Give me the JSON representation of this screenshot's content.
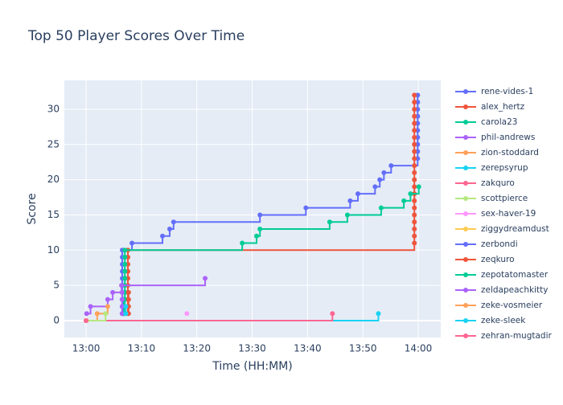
{
  "chart_data": {
    "type": "line",
    "line_shape": "hv",
    "title": "Top 50 Player Scores Over Time",
    "x_label": "Time (HH:MM)",
    "y_label": "Score",
    "xlim": [
      "12:56:04",
      "14:04:04"
    ],
    "xticks": [
      "13:00",
      "13:10",
      "13:20",
      "13:30",
      "13:40",
      "13:50",
      "14:00"
    ],
    "ylim": [
      -2.4,
      34.1
    ],
    "yticks": [
      0,
      5,
      10,
      15,
      20,
      25,
      30
    ],
    "grid": true,
    "legend": "right",
    "series": [
      {
        "name": "rene-vides-1",
        "color": "#636efa",
        "x": [
          "13:06:32",
          "13:06:32",
          "13:06:32",
          "13:06:32",
          "13:06:32",
          "13:06:32",
          "13:06:32",
          "13:06:32",
          "13:06:32",
          "13:06:32",
          "13:08:17",
          "13:13:48",
          "13:15:06",
          "13:15:48",
          "13:31:24",
          "13:39:42",
          "13:47:42",
          "13:49:06",
          "13:52:12",
          "13:53:03",
          "13:53:48",
          "13:55:06",
          "13:59:54",
          "13:59:54",
          "13:59:54",
          "13:59:54",
          "13:59:54",
          "13:59:54",
          "13:59:54",
          "13:59:54",
          "13:59:54",
          "13:59:54"
        ],
        "values": [
          1,
          2,
          3,
          4,
          5,
          6,
          7,
          8,
          9,
          10,
          11,
          12,
          13,
          14,
          15,
          16,
          17,
          18,
          19,
          20,
          21,
          22,
          23,
          24,
          25,
          26,
          27,
          28,
          29,
          30,
          31,
          32
        ]
      },
      {
        "name": "alex_hertz",
        "color": "#EF553B",
        "x": [
          "13:07:33",
          "13:07:33",
          "13:07:33",
          "13:07:33",
          "13:07:33",
          "13:07:33",
          "13:07:33",
          "13:07:33",
          "13:07:33",
          "13:07:33",
          "13:59:18",
          "13:59:18",
          "13:59:18",
          "13:59:18",
          "13:59:18",
          "13:59:18",
          "13:59:18",
          "13:59:18",
          "13:59:18",
          "13:59:18",
          "13:59:18",
          "13:59:18",
          "13:59:18",
          "13:59:18",
          "13:59:18",
          "13:59:18",
          "13:59:18",
          "13:59:18",
          "13:59:18",
          "13:59:18",
          "13:59:18",
          "13:59:18"
        ],
        "values": [
          1,
          2,
          3,
          4,
          5,
          6,
          7,
          8,
          9,
          10,
          11,
          12,
          13,
          14,
          15,
          16,
          17,
          18,
          19,
          20,
          21,
          22,
          23,
          24,
          25,
          26,
          27,
          28,
          29,
          30,
          31,
          32
        ]
      },
      {
        "name": "carola23",
        "color": "#00cc96",
        "x": [
          "13:07:00",
          "13:07:00",
          "13:07:00",
          "13:07:00",
          "13:07:00",
          "13:07:00",
          "13:07:00",
          "13:07:00",
          "13:07:00",
          "13:07:00",
          "13:28:12",
          "13:30:48",
          "13:31:24",
          "13:44:00",
          "13:47:12",
          "13:53:18",
          "13:57:24",
          "13:58:36",
          "14:00:06"
        ],
        "values": [
          1,
          2,
          3,
          4,
          5,
          6,
          7,
          8,
          9,
          10,
          11,
          12,
          13,
          14,
          15,
          16,
          17,
          18,
          19
        ]
      },
      {
        "name": "phil-andrews",
        "color": "#ab63fa",
        "x": [
          "13:00:06",
          "13:00:48",
          "13:03:54",
          "13:04:48",
          "13:06:24",
          "13:21:30"
        ],
        "values": [
          1,
          2,
          3,
          4,
          5,
          6
        ]
      },
      {
        "name": "zion-stoddard",
        "color": "#FFA15A",
        "x": [
          "13:00:00",
          "13:02:00",
          "13:03:54"
        ],
        "values": [
          0,
          1,
          2
        ]
      },
      {
        "name": "zerepsyrup",
        "color": "#19d3f3",
        "x": [
          "13:00:00",
          "13:52:48"
        ],
        "values": [
          0,
          1
        ]
      },
      {
        "name": "zakquro",
        "color": "#FF6692",
        "x": [
          "13:00:00",
          "13:44:30"
        ],
        "values": [
          0,
          1
        ]
      },
      {
        "name": "scottpierce",
        "color": "#B6E880",
        "x": [
          "13:00:00",
          "13:03:30"
        ],
        "values": [
          0,
          1
        ]
      },
      {
        "name": "sex-haver-19",
        "color": "#FF97FF",
        "x": [
          "13:18:12"
        ],
        "values": [
          1
        ]
      },
      {
        "name": "ziggydreamdust",
        "color": "#FECB52",
        "x": [
          "13:00:00"
        ],
        "values": [
          0
        ]
      },
      {
        "name": "zerbondi",
        "color": "#636efa",
        "x": [
          "13:06:40",
          "13:06:40",
          "13:06:40"
        ],
        "values": [
          1,
          2,
          3
        ]
      },
      {
        "name": "zeqkuro",
        "color": "#EF553B",
        "x": [
          "13:07:40",
          "13:07:40",
          "13:07:40",
          "13:07:40"
        ],
        "values": [
          1,
          2,
          3,
          4
        ]
      },
      {
        "name": "zepotatomaster",
        "color": "#00cc96",
        "x": [
          "13:06:50",
          "13:06:50",
          "13:06:50"
        ],
        "values": [
          1,
          2,
          3
        ]
      },
      {
        "name": "zeldapeachkitty",
        "color": "#ab63fa",
        "x": [
          "13:06:30",
          "13:06:30",
          "13:06:30",
          "13:06:30"
        ],
        "values": [
          1,
          2,
          3,
          4
        ]
      },
      {
        "name": "zeke-vosmeier",
        "color": "#FFA15A",
        "x": [
          "13:00:00"
        ],
        "values": [
          0
        ]
      },
      {
        "name": "zeke-sleek",
        "color": "#19d3f3",
        "x": [
          "13:07:10",
          "13:07:10"
        ],
        "values": [
          1,
          2
        ]
      },
      {
        "name": "zehran-mugtadir",
        "color": "#FF6692",
        "x": [
          "13:00:00"
        ],
        "values": [
          0
        ]
      }
    ]
  }
}
